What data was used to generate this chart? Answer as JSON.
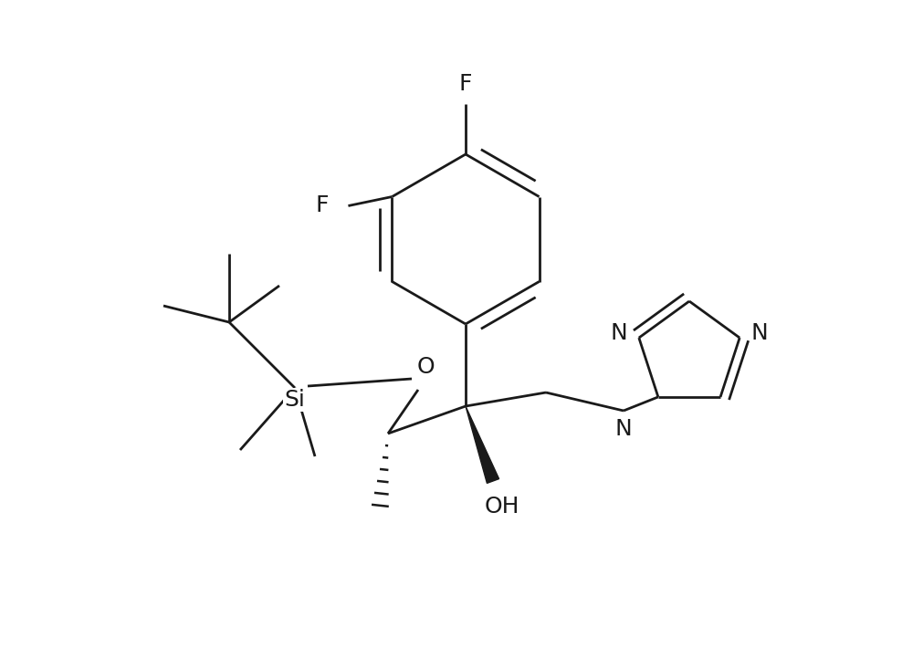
{
  "background_color": "#ffffff",
  "line_color": "#1a1a1a",
  "line_width": 2.0,
  "font_size": 18,
  "fig_width": 9.88,
  "fig_height": 7.22,
  "xlim": [
    0,
    9.88
  ],
  "ylim": [
    0,
    7.22
  ]
}
